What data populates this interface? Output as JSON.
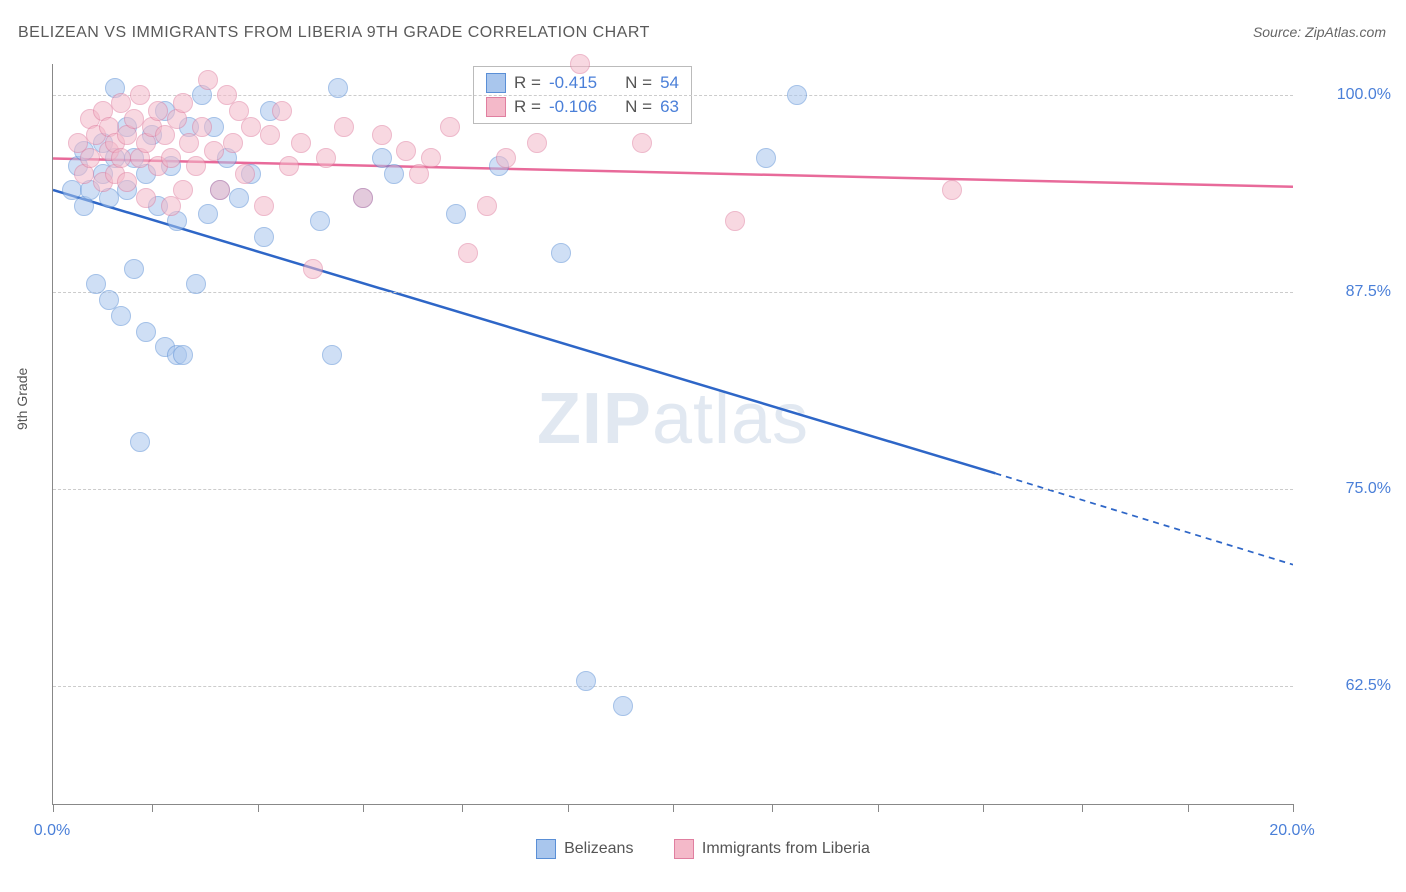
{
  "title": "BELIZEAN VS IMMIGRANTS FROM LIBERIA 9TH GRADE CORRELATION CHART",
  "source_label": "Source:",
  "source_value": "ZipAtlas.com",
  "ylabel": "9th Grade",
  "watermark_a": "ZIP",
  "watermark_b": "atlas",
  "chart": {
    "type": "scatter",
    "xlim": [
      0,
      20
    ],
    "ylim": [
      55,
      102
    ],
    "xtick_positions": [
      0,
      1.6,
      3.3,
      5.0,
      6.6,
      8.3,
      10.0,
      11.6,
      13.3,
      15.0,
      16.6,
      18.3,
      20.0
    ],
    "xtick_labels": {
      "0": "0.0%",
      "20": "20.0%"
    },
    "ytick_positions": [
      62.5,
      75.0,
      87.5,
      100.0
    ],
    "ytick_labels": [
      "62.5%",
      "75.0%",
      "87.5%",
      "100.0%"
    ],
    "grid_color": "#cccccc",
    "background_color": "#ffffff",
    "marker_radius": 9,
    "marker_opacity": 0.55,
    "series": [
      {
        "name": "Belizeans",
        "color_fill": "#a9c6ed",
        "color_stroke": "#5a8fd6",
        "R": "-0.415",
        "N": "54",
        "trend": {
          "x1": 0,
          "y1": 94.0,
          "x2": 15.2,
          "y2": 76.0,
          "x2_dash": 20.0,
          "y2_dash": 70.2,
          "color": "#2e66c7",
          "width": 2.5
        },
        "points": [
          [
            0.3,
            94.0
          ],
          [
            0.4,
            95.5
          ],
          [
            0.5,
            93.0
          ],
          [
            0.5,
            96.5
          ],
          [
            0.6,
            94.0
          ],
          [
            0.7,
            88.0
          ],
          [
            0.8,
            95.0
          ],
          [
            0.8,
            97.0
          ],
          [
            0.9,
            87.0
          ],
          [
            0.9,
            93.5
          ],
          [
            1.0,
            96.0
          ],
          [
            1.0,
            100.5
          ],
          [
            1.1,
            86.0
          ],
          [
            1.2,
            94.0
          ],
          [
            1.2,
            98.0
          ],
          [
            1.3,
            89.0
          ],
          [
            1.3,
            96.0
          ],
          [
            1.4,
            78.0
          ],
          [
            1.5,
            85.0
          ],
          [
            1.5,
            95.0
          ],
          [
            1.6,
            97.5
          ],
          [
            1.7,
            93.0
          ],
          [
            1.8,
            99.0
          ],
          [
            1.8,
            84.0
          ],
          [
            1.9,
            95.5
          ],
          [
            2.0,
            83.5
          ],
          [
            2.0,
            92.0
          ],
          [
            2.1,
            83.5
          ],
          [
            2.2,
            98.0
          ],
          [
            2.3,
            88.0
          ],
          [
            2.4,
            100.0
          ],
          [
            2.5,
            92.5
          ],
          [
            2.6,
            98.0
          ],
          [
            2.7,
            94.0
          ],
          [
            2.8,
            96.0
          ],
          [
            3.0,
            93.5
          ],
          [
            3.2,
            95.0
          ],
          [
            3.4,
            91.0
          ],
          [
            3.5,
            99.0
          ],
          [
            4.3,
            92.0
          ],
          [
            4.5,
            83.5
          ],
          [
            4.6,
            100.5
          ],
          [
            5.0,
            93.5
          ],
          [
            5.3,
            96.0
          ],
          [
            5.5,
            95.0
          ],
          [
            6.5,
            92.5
          ],
          [
            7.2,
            95.5
          ],
          [
            8.2,
            90.0
          ],
          [
            8.6,
            62.8
          ],
          [
            9.2,
            61.2
          ],
          [
            11.5,
            96.0
          ],
          [
            12.0,
            100.0
          ]
        ]
      },
      {
        "name": "Immigrants from Liberia",
        "color_fill": "#f4b9c9",
        "color_stroke": "#e07fa0",
        "R": "-0.106",
        "N": "63",
        "trend": {
          "x1": 0,
          "y1": 96.0,
          "x2": 20.0,
          "y2": 94.2,
          "color": "#e86a9a",
          "width": 2.5
        },
        "points": [
          [
            0.4,
            97.0
          ],
          [
            0.5,
            95.0
          ],
          [
            0.6,
            98.5
          ],
          [
            0.6,
            96.0
          ],
          [
            0.7,
            97.5
          ],
          [
            0.8,
            94.5
          ],
          [
            0.8,
            99.0
          ],
          [
            0.9,
            96.5
          ],
          [
            0.9,
            98.0
          ],
          [
            1.0,
            95.0
          ],
          [
            1.0,
            97.0
          ],
          [
            1.1,
            99.5
          ],
          [
            1.1,
            96.0
          ],
          [
            1.2,
            97.5
          ],
          [
            1.2,
            94.5
          ],
          [
            1.3,
            98.5
          ],
          [
            1.4,
            96.0
          ],
          [
            1.4,
            100.0
          ],
          [
            1.5,
            97.0
          ],
          [
            1.5,
            93.5
          ],
          [
            1.6,
            98.0
          ],
          [
            1.7,
            99.0
          ],
          [
            1.7,
            95.5
          ],
          [
            1.8,
            97.5
          ],
          [
            1.9,
            96.0
          ],
          [
            1.9,
            93.0
          ],
          [
            2.0,
            98.5
          ],
          [
            2.1,
            99.5
          ],
          [
            2.1,
            94.0
          ],
          [
            2.2,
            97.0
          ],
          [
            2.3,
            95.5
          ],
          [
            2.4,
            98.0
          ],
          [
            2.5,
            101.0
          ],
          [
            2.6,
            96.5
          ],
          [
            2.7,
            94.0
          ],
          [
            2.8,
            100.0
          ],
          [
            2.9,
            97.0
          ],
          [
            3.0,
            99.0
          ],
          [
            3.1,
            95.0
          ],
          [
            3.2,
            98.0
          ],
          [
            3.4,
            93.0
          ],
          [
            3.5,
            97.5
          ],
          [
            3.7,
            99.0
          ],
          [
            3.8,
            95.5
          ],
          [
            4.0,
            97.0
          ],
          [
            4.2,
            89.0
          ],
          [
            4.4,
            96.0
          ],
          [
            4.7,
            98.0
          ],
          [
            5.0,
            93.5
          ],
          [
            5.3,
            97.5
          ],
          [
            5.7,
            96.5
          ],
          [
            5.9,
            95.0
          ],
          [
            6.1,
            96.0
          ],
          [
            6.4,
            98.0
          ],
          [
            6.7,
            90.0
          ],
          [
            7.0,
            93.0
          ],
          [
            7.3,
            96.0
          ],
          [
            7.8,
            97.0
          ],
          [
            8.5,
            102.0
          ],
          [
            9.5,
            97.0
          ],
          [
            11.0,
            92.0
          ],
          [
            14.5,
            94.0
          ]
        ]
      }
    ],
    "legend_top": {
      "r_label": "R =",
      "n_label": "N ="
    },
    "legend_bottom_labels": [
      "Belizeans",
      "Immigrants from Liberia"
    ]
  }
}
